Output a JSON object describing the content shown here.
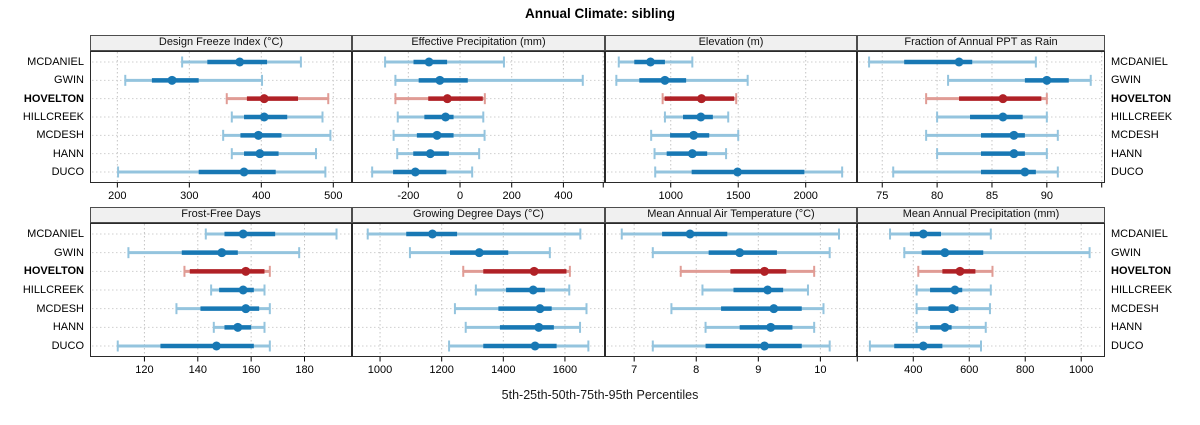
{
  "chart_data": {
    "type": "dotplot-percentiles",
    "title": "Annual Climate: sibling",
    "caption": "5th-25th-50th-75th-95th Percentiles",
    "percentile_labels": [
      "5th",
      "25th",
      "50th",
      "75th",
      "95th"
    ],
    "sites": [
      "MCDANIEL",
      "GWIN",
      "HOVELTON",
      "HILLCREEK",
      "MCDESH",
      "HANN",
      "DUCO"
    ],
    "highlighted_site": "HOVELTON",
    "layout": {
      "grid_rows": 2,
      "grid_cols": 4,
      "grid": "dotted",
      "site_labels": "both-sides"
    },
    "colors": {
      "blue": "#1878b4",
      "light_blue": "#94c4de",
      "red": "#b02126",
      "light_red": "#e09c95",
      "strip_bg": "#f0f0f0",
      "grid": "#c4c4c4",
      "frame": "#2a2a2a"
    },
    "panels": [
      {
        "slug": "design-freeze-index",
        "title": "Design Freeze Index (°C)",
        "xlim": [
          162,
          526
        ],
        "ticks": [
          200,
          300,
          400,
          500
        ],
        "unlabeled_ticks": [],
        "series": [
          {
            "site": "MCDANIEL",
            "percentiles": [
              290,
              325,
              370,
              408,
              455
            ]
          },
          {
            "site": "GWIN",
            "percentiles": [
              211,
              248,
              276,
              313,
              401
            ]
          },
          {
            "site": "HOVELTON",
            "percentiles": [
              352,
              380,
              404,
              451,
              493
            ]
          },
          {
            "site": "HILLCREEK",
            "percentiles": [
              359,
              376,
              404,
              436,
              485
            ]
          },
          {
            "site": "MCDESH",
            "percentiles": [
              347,
              371,
              396,
              428,
              496
            ]
          },
          {
            "site": "HANN",
            "percentiles": [
              359,
              376,
              398,
              424,
              476
            ]
          },
          {
            "site": "DUCO",
            "percentiles": [
              201,
              313,
              376,
              420,
              489
            ]
          }
        ]
      },
      {
        "slug": "effective-precipitation",
        "title": "Effective Precipitation (mm)",
        "xlim": [
          -418,
          561
        ],
        "ticks": [
          -200,
          0,
          200,
          400
        ],
        "unlabeled_ticks": [],
        "series": [
          {
            "site": "MCDANIEL",
            "percentiles": [
              -290,
              -180,
              -120,
              -50,
              170
            ]
          },
          {
            "site": "GWIN",
            "percentiles": [
              -250,
              -160,
              -78,
              30,
              475
            ]
          },
          {
            "site": "HOVELTON",
            "percentiles": [
              -250,
              -123,
              -49,
              88,
              96
            ]
          },
          {
            "site": "HILLCREEK",
            "percentiles": [
              -241,
              -138,
              -56,
              -25,
              90
            ]
          },
          {
            "site": "MCDESH",
            "percentiles": [
              -257,
              -167,
              -89,
              -25,
              95
            ]
          },
          {
            "site": "HANN",
            "percentiles": [
              -243,
              -181,
              -115,
              -43,
              74
            ]
          },
          {
            "site": "DUCO",
            "percentiles": [
              -340,
              -259,
              -173,
              -53,
              47
            ]
          }
        ]
      },
      {
        "slug": "elevation",
        "title": "Elevation (m)",
        "xlim": [
          513,
          2380
        ],
        "ticks": [
          1000,
          1500,
          2000
        ],
        "unlabeled_ticks": [
          500
        ],
        "series": [
          {
            "site": "MCDANIEL",
            "percentiles": [
              615,
              730,
              850,
              957,
              1160
            ]
          },
          {
            "site": "GWIN",
            "percentiles": [
              597,
              767,
              957,
              1114,
              1570
            ]
          },
          {
            "site": "HOVELTON",
            "percentiles": [
              940,
              955,
              1228,
              1470,
              1485
            ]
          },
          {
            "site": "HILLCREEK",
            "percentiles": [
              957,
              1091,
              1223,
              1312,
              1426
            ]
          },
          {
            "site": "MCDESH",
            "percentiles": [
              855,
              995,
              1170,
              1285,
              1500
            ]
          },
          {
            "site": "HANN",
            "percentiles": [
              880,
              970,
              1160,
              1270,
              1410
            ]
          },
          {
            "site": "DUCO",
            "percentiles": [
              885,
              1155,
              1495,
              1990,
              2270
            ]
          }
        ]
      },
      {
        "slug": "fraction-annual-ppt-as-rain",
        "title": "Fraction of Annual PPT as Rain",
        "xlim": [
          72.7,
          95.3
        ],
        "ticks": [
          75,
          80,
          85,
          90
        ],
        "unlabeled_ticks": [
          95
        ],
        "series": [
          {
            "site": "MCDANIEL",
            "percentiles": [
              73.8,
              77,
              82,
              83.2,
              89
            ]
          },
          {
            "site": "GWIN",
            "percentiles": [
              81,
              88,
              90,
              92,
              94
            ]
          },
          {
            "site": "HOVELTON",
            "percentiles": [
              79,
              82,
              86,
              89.5,
              90
            ]
          },
          {
            "site": "HILLCREEK",
            "percentiles": [
              80,
              83,
              86,
              87.8,
              90
            ]
          },
          {
            "site": "MCDESH",
            "percentiles": [
              79,
              84,
              87,
              88,
              91
            ]
          },
          {
            "site": "HANN",
            "percentiles": [
              80,
              84,
              87,
              88,
              90
            ]
          },
          {
            "site": "DUCO",
            "percentiles": [
              76,
              84,
              88,
              89,
              91
            ]
          }
        ]
      },
      {
        "slug": "frost-free-days",
        "title": "Frost-Free Days",
        "xlim": [
          99.6,
          197.8
        ],
        "ticks": [
          120,
          140,
          160,
          180
        ],
        "unlabeled_ticks": [],
        "series": [
          {
            "site": "MCDANIEL",
            "percentiles": [
              143,
              150,
              157,
              169,
              192
            ]
          },
          {
            "site": "GWIN",
            "percentiles": [
              114,
              134,
              149,
              155,
              178
            ]
          },
          {
            "site": "HOVELTON",
            "percentiles": [
              135,
              137,
              158,
              165,
              167
            ]
          },
          {
            "site": "HILLCREEK",
            "percentiles": [
              145,
              148,
              157,
              161,
              165
            ]
          },
          {
            "site": "MCDESH",
            "percentiles": [
              132,
              141,
              158,
              163,
              167
            ]
          },
          {
            "site": "HANN",
            "percentiles": [
              146,
              150,
              155,
              160,
              165
            ]
          },
          {
            "site": "DUCO",
            "percentiles": [
              110,
              126,
              147,
              161,
              167
            ]
          }
        ]
      },
      {
        "slug": "growing-degree-days",
        "title": "Growing Degree Days (°C)",
        "xlim": [
          909,
          1730
        ],
        "ticks": [
          1000,
          1200,
          1400,
          1600
        ],
        "unlabeled_ticks": [],
        "series": [
          {
            "site": "MCDANIEL",
            "percentiles": [
              960,
              1085,
              1170,
              1250,
              1650
            ]
          },
          {
            "site": "GWIN",
            "percentiles": [
              1097,
              1227,
              1322,
              1416,
              1551
            ]
          },
          {
            "site": "HOVELTON",
            "percentiles": [
              1270,
              1335,
              1500,
              1605,
              1616
            ]
          },
          {
            "site": "HILLCREEK",
            "percentiles": [
              1311,
              1409,
              1497,
              1535,
              1614
            ]
          },
          {
            "site": "MCDESH",
            "percentiles": [
              1243,
              1384,
              1519,
              1557,
              1670
            ]
          },
          {
            "site": "HANN",
            "percentiles": [
              1278,
              1389,
              1515,
              1564,
              1649
            ]
          },
          {
            "site": "DUCO",
            "percentiles": [
              1224,
              1335,
              1503,
              1573,
              1676
            ]
          }
        ]
      },
      {
        "slug": "mean-annual-air-temperature",
        "title": "Mean Annual Air Temperature (°C)",
        "xlim": [
          6.53,
          10.59
        ],
        "ticks": [
          7,
          8,
          9,
          10
        ],
        "unlabeled_ticks": [],
        "series": [
          {
            "site": "MCDANIEL",
            "percentiles": [
              6.8,
              7.45,
              7.9,
              8.5,
              10.3
            ]
          },
          {
            "site": "GWIN",
            "percentiles": [
              7.3,
              8.2,
              8.7,
              9.3,
              10.15
            ]
          },
          {
            "site": "HOVELTON",
            "percentiles": [
              7.75,
              8.55,
              9.1,
              9.45,
              9.9
            ]
          },
          {
            "site": "HILLCREEK",
            "percentiles": [
              8.1,
              8.6,
              9.15,
              9.4,
              9.8
            ]
          },
          {
            "site": "MCDESH",
            "percentiles": [
              7.6,
              8.4,
              9.25,
              9.7,
              10.05
            ]
          },
          {
            "site": "HANN",
            "percentiles": [
              8.15,
              8.7,
              9.2,
              9.55,
              9.9
            ]
          },
          {
            "site": "DUCO",
            "percentiles": [
              7.3,
              8.15,
              9.1,
              9.7,
              10.15
            ]
          }
        ]
      },
      {
        "slug": "mean-annual-precipitation",
        "title": "Mean Annual Precipitation (mm)",
        "xlim": [
          199,
          1085
        ],
        "ticks": [
          400,
          600,
          800,
          1000
        ],
        "unlabeled_ticks": [
          200
        ],
        "series": [
          {
            "site": "MCDANIEL",
            "percentiles": [
              317,
              388,
              436,
              499,
              677
            ]
          },
          {
            "site": "GWIN",
            "percentiles": [
              368,
              430,
              513,
              650,
              1030
            ]
          },
          {
            "site": "HOVELTON",
            "percentiles": [
              418,
              504,
              567,
              622,
              683
            ]
          },
          {
            "site": "HILLCREEK",
            "percentiles": [
              412,
              460,
              549,
              575,
              677
            ]
          },
          {
            "site": "MCDESH",
            "percentiles": [
              412,
              454,
              539,
              561,
              674
            ]
          },
          {
            "site": "HANN",
            "percentiles": [
              412,
              460,
              513,
              537,
              659
            ]
          },
          {
            "site": "DUCO",
            "percentiles": [
              245,
              332,
              436,
              504,
              642
            ]
          }
        ]
      }
    ]
  }
}
